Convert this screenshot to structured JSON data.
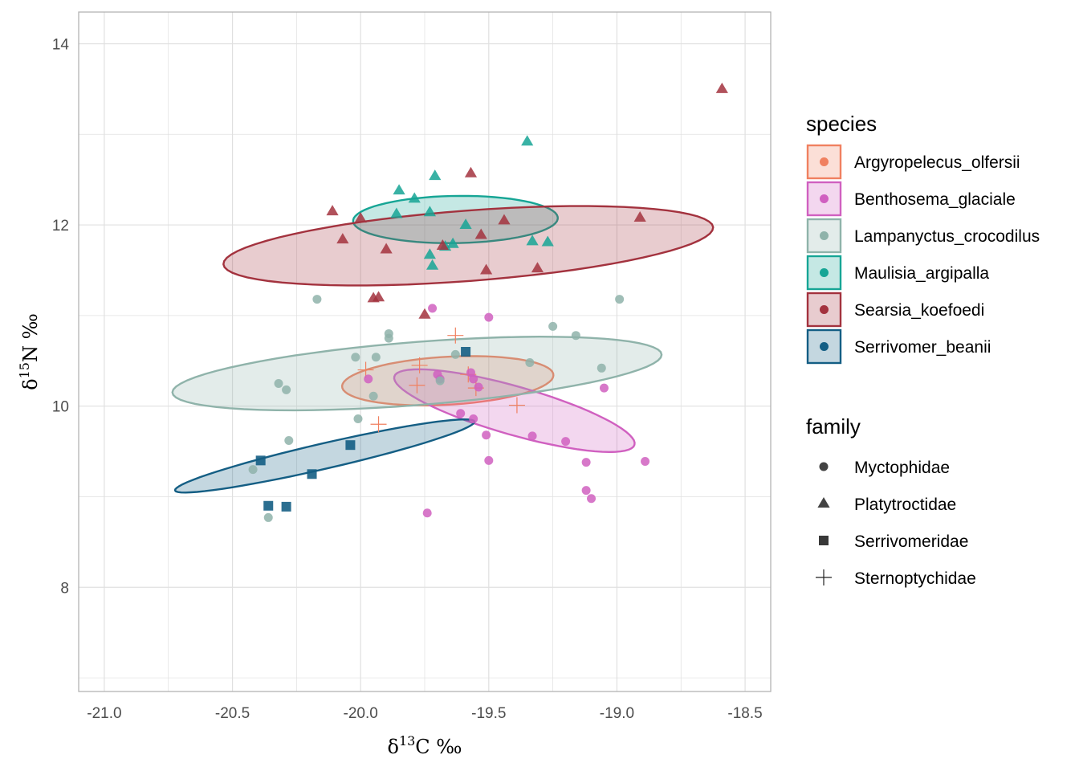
{
  "chart_data": {
    "type": "scatter",
    "xlabel": "δ13C ‰",
    "ylabel": "δ15N ‰",
    "xlim": [
      -21.1,
      -18.4
    ],
    "ylim": [
      6.85,
      14.35
    ],
    "x_ticks": [
      -21.0,
      -20.5,
      -20.0,
      -19.5,
      -19.0,
      -18.5
    ],
    "x_tick_labels": [
      "-21.0",
      "-20.5",
      "-20.0",
      "-19.5",
      "-19.0",
      "-18.5"
    ],
    "y_ticks": [
      8,
      10,
      12,
      14
    ],
    "y_tick_labels": [
      "8",
      "10",
      "12",
      "14"
    ],
    "grid": true,
    "legend_placement": "right",
    "legends": [
      {
        "title": "species",
        "entries": [
          {
            "label": "Argyropelecus_olfersii",
            "color": "#F08060"
          },
          {
            "label": "Benthosema_glaciale",
            "color": "#D060C0"
          },
          {
            "label": "Lampanyctus_crocodilus",
            "color": "#8FB3AA"
          },
          {
            "label": "Maulisia_argipalla",
            "color": "#16A595"
          },
          {
            "label": "Searsia_koefoedi",
            "color": "#A3323E"
          },
          {
            "label": "Serrivomer_beanii",
            "color": "#145E84"
          }
        ]
      },
      {
        "title": "family",
        "entries": [
          {
            "label": "Myctophidae",
            "shape": "circle"
          },
          {
            "label": "Platytroctidae",
            "shape": "triangle"
          },
          {
            "label": "Serrivomeridae",
            "shape": "square"
          },
          {
            "label": "Sternoptychidae",
            "shape": "plus"
          }
        ]
      }
    ],
    "series": [
      {
        "name": "Argyropelecus_olfersii",
        "family": "Sternoptychidae",
        "ellipse": {
          "cx": -19.66,
          "cy": 10.28,
          "rx": 0.42,
          "ry": 0.26,
          "angle_deg": 14
        },
        "points": [
          [
            -19.98,
            10.4
          ],
          [
            -19.63,
            10.78
          ],
          [
            -19.77,
            10.45
          ],
          [
            -19.78,
            10.23
          ],
          [
            -19.39,
            10.01
          ],
          [
            -19.93,
            9.8
          ],
          [
            -19.58,
            10.35
          ],
          [
            -19.55,
            10.2
          ]
        ]
      },
      {
        "name": "Benthosema_glaciale",
        "family": "Myctophidae",
        "ellipse": {
          "cx": -19.4,
          "cy": 9.95,
          "rx": 0.62,
          "ry": 0.21,
          "angle_deg": -44
        },
        "points": [
          [
            -19.72,
            11.08
          ],
          [
            -19.5,
            10.98
          ],
          [
            -19.97,
            10.3
          ],
          [
            -19.7,
            10.35
          ],
          [
            -19.69,
            10.3
          ],
          [
            -19.56,
            10.3
          ],
          [
            -19.57,
            10.37
          ],
          [
            -19.54,
            10.21
          ],
          [
            -19.05,
            10.2
          ],
          [
            -19.61,
            9.92
          ],
          [
            -19.56,
            9.86
          ],
          [
            -19.51,
            9.68
          ],
          [
            -19.33,
            9.67
          ],
          [
            -19.2,
            9.61
          ],
          [
            -19.5,
            9.4
          ],
          [
            -19.12,
            9.38
          ],
          [
            -18.89,
            9.39
          ],
          [
            -19.12,
            9.07
          ],
          [
            -19.1,
            8.98
          ],
          [
            -19.74,
            8.82
          ]
        ]
      },
      {
        "name": "Lampanyctus_crocodilus",
        "family": "Myctophidae",
        "ellipse": {
          "cx": -19.78,
          "cy": 10.36,
          "rx": 0.98,
          "ry": 0.34,
          "angle_deg": 14
        },
        "points": [
          [
            -20.17,
            11.18
          ],
          [
            -18.99,
            11.18
          ],
          [
            -19.25,
            10.88
          ],
          [
            -19.16,
            10.78
          ],
          [
            -19.89,
            10.8
          ],
          [
            -19.89,
            10.75
          ],
          [
            -20.02,
            10.54
          ],
          [
            -19.94,
            10.54
          ],
          [
            -19.63,
            10.57
          ],
          [
            -19.34,
            10.48
          ],
          [
            -19.06,
            10.42
          ],
          [
            -20.32,
            10.25
          ],
          [
            -20.29,
            10.18
          ],
          [
            -19.69,
            10.28
          ],
          [
            -19.95,
            10.11
          ],
          [
            -20.01,
            9.86
          ],
          [
            -20.28,
            9.62
          ],
          [
            -20.42,
            9.3
          ],
          [
            -20.36,
            8.77
          ]
        ]
      },
      {
        "name": "Maulisia_argipalla",
        "family": "Platytroctidae",
        "ellipse": {
          "cx": -19.63,
          "cy": 12.06,
          "rx": 0.4,
          "ry": 0.26,
          "angle_deg": 4
        },
        "points": [
          [
            -19.35,
            12.92
          ],
          [
            -19.71,
            12.54
          ],
          [
            -19.85,
            12.38
          ],
          [
            -19.79,
            12.29
          ],
          [
            -19.73,
            12.14
          ],
          [
            -19.59,
            12.0
          ],
          [
            -19.64,
            11.79
          ],
          [
            -19.67,
            11.76
          ],
          [
            -19.73,
            11.67
          ],
          [
            -19.72,
            11.55
          ],
          [
            -19.33,
            11.82
          ],
          [
            -19.27,
            11.81
          ],
          [
            -19.86,
            12.12
          ]
        ]
      },
      {
        "name": "Searsia_koefoedi",
        "family": "Platytroctidae",
        "ellipse": {
          "cx": -19.58,
          "cy": 11.77,
          "rx": 0.98,
          "ry": 0.38,
          "angle_deg": 14
        },
        "points": [
          [
            -18.59,
            13.5
          ],
          [
            -19.57,
            12.57
          ],
          [
            -20.11,
            12.15
          ],
          [
            -20.0,
            12.07
          ],
          [
            -19.44,
            12.05
          ],
          [
            -18.91,
            12.08
          ],
          [
            -20.07,
            11.84
          ],
          [
            -19.53,
            11.89
          ],
          [
            -19.9,
            11.73
          ],
          [
            -19.68,
            11.77
          ],
          [
            -19.51,
            11.5
          ],
          [
            -19.31,
            11.52
          ],
          [
            -19.93,
            11.2
          ],
          [
            -19.95,
            11.19
          ],
          [
            -19.75,
            11.01
          ]
        ]
      },
      {
        "name": "Serrivomer_beanii",
        "family": "Serrivomeridae",
        "ellipse": {
          "cx": -20.14,
          "cy": 9.45,
          "rx": 0.7,
          "ry": 0.12,
          "angle_deg": 34
        },
        "points": [
          [
            -19.59,
            10.6
          ],
          [
            -20.04,
            9.57
          ],
          [
            -20.39,
            9.4
          ],
          [
            -20.19,
            9.25
          ],
          [
            -20.36,
            8.9
          ],
          [
            -20.29,
            8.89
          ]
        ]
      }
    ]
  }
}
